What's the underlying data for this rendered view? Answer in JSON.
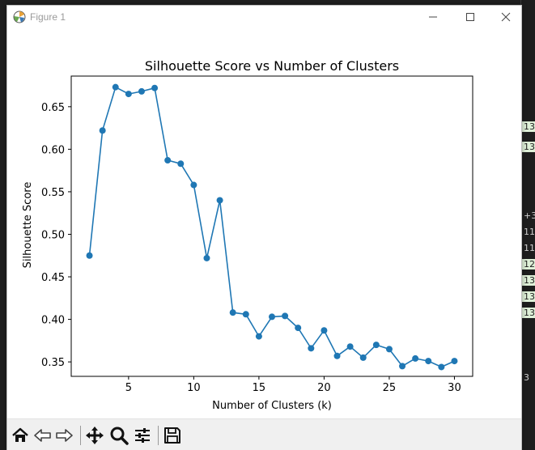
{
  "window": {
    "title": "Figure 1"
  },
  "background_panel": {
    "lines": [
      "13",
      "13",
      "+3",
      "11",
      "11",
      "12",
      "13",
      "13",
      "13",
      "3"
    ]
  },
  "toolbar": {
    "icons": [
      "home-icon",
      "back-arrow-icon",
      "forward-arrow-icon",
      "pan-icon",
      "zoom-icon",
      "configure-icon",
      "save-icon"
    ]
  },
  "colors": {
    "series": "#1f77b4",
    "axes": "#000000",
    "background": "#ffffff"
  },
  "chart_data": {
    "type": "line",
    "title": "Silhouette Score vs Number of Clusters",
    "xlabel": "Number of Clusters (k)",
    "ylabel": "Silhouette Score",
    "xlim": [
      0.6,
      31.4
    ],
    "ylim": [
      0.333,
      0.686
    ],
    "xticks": [
      5,
      10,
      15,
      20,
      25,
      30
    ],
    "yticks": [
      0.35,
      0.4,
      0.45,
      0.5,
      0.55,
      0.6,
      0.65
    ],
    "ytick_labels": [
      "0.35",
      "0.40",
      "0.45",
      "0.50",
      "0.55",
      "0.60",
      "0.65"
    ],
    "grid": false,
    "marker": "circle",
    "x": [
      2,
      3,
      4,
      5,
      6,
      7,
      8,
      9,
      10,
      11,
      12,
      13,
      14,
      15,
      16,
      17,
      18,
      19,
      20,
      21,
      22,
      23,
      24,
      25,
      26,
      27,
      28,
      29,
      30
    ],
    "y": [
      0.475,
      0.622,
      0.673,
      0.665,
      0.668,
      0.672,
      0.587,
      0.583,
      0.558,
      0.472,
      0.54,
      0.408,
      0.406,
      0.38,
      0.403,
      0.404,
      0.39,
      0.366,
      0.387,
      0.357,
      0.368,
      0.355,
      0.37,
      0.365,
      0.345,
      0.354,
      0.351,
      0.344,
      0.351
    ]
  }
}
